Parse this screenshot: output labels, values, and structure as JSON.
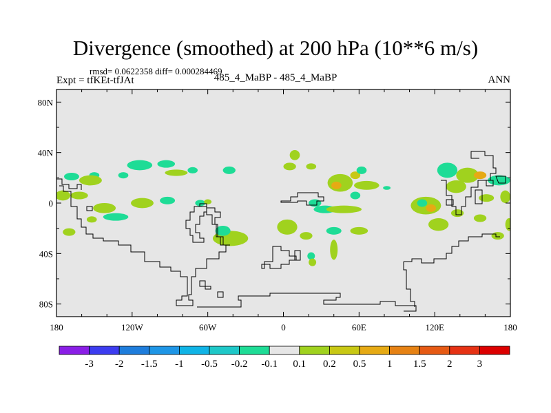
{
  "title": "Divergence (smoothed) at 200 hPa (10**6 m/s)",
  "stats_line": "rmsd= 0.0622358 diff= 0.000284469",
  "expt_label": "Expt = tfKEt-tfJAt",
  "case_label": "485_4_MaBP - 485_4_MaBP",
  "season_label": "ANN",
  "chart_data": {
    "type": "heatmap",
    "title": "Divergence (smoothed) at 200 hPa (10**6 m/s)",
    "subtitle": "485_4_MaBP - 485_4_MaBP",
    "xlim": [
      -180,
      180
    ],
    "ylim": [
      -90,
      90
    ],
    "x_ticks": [
      {
        "value": -180,
        "label": "180"
      },
      {
        "value": -120,
        "label": "120W"
      },
      {
        "value": -60,
        "label": "60W"
      },
      {
        "value": 0,
        "label": "0"
      },
      {
        "value": 60,
        "label": "60E"
      },
      {
        "value": 120,
        "label": "120E"
      },
      {
        "value": 180,
        "label": "180"
      }
    ],
    "y_ticks": [
      {
        "value": 80,
        "label": "80N"
      },
      {
        "value": 40,
        "label": "40N"
      },
      {
        "value": 0,
        "label": "0"
      },
      {
        "value": -40,
        "label": "40S"
      },
      {
        "value": -80,
        "label": "80S"
      }
    ],
    "background_color": "#e6e6e6",
    "contour_levels": [
      "-3",
      "-2",
      "-1.5",
      "-1",
      "-0.5",
      "-0.2",
      "-0.1",
      "0.1",
      "0.2",
      "0.5",
      "1",
      "1.5",
      "2",
      "3"
    ],
    "colorbar_colors": [
      "#8a1ee6",
      "#3c3cf0",
      "#1e7ddc",
      "#1e96e6",
      "#10b4e6",
      "#1ec8c8",
      "#1edc96",
      "#e6e6e6",
      "#a0d21e",
      "#c8c814",
      "#e6aa14",
      "#e68214",
      "#e65a14",
      "#e63214",
      "#dc0000"
    ],
    "blobs": [
      {
        "lon": -168,
        "lat": 21,
        "rx": 6,
        "ry": 3,
        "level": "-0.2"
      },
      {
        "lon": -150,
        "lat": 22,
        "rx": 4,
        "ry": 2.5,
        "level": "-0.2"
      },
      {
        "lon": -127,
        "lat": 22,
        "rx": 4,
        "ry": 2.5,
        "level": "-0.2"
      },
      {
        "lon": -114,
        "lat": 30,
        "rx": 10,
        "ry": 4,
        "level": "-0.2"
      },
      {
        "lon": -93,
        "lat": 31,
        "rx": 7,
        "ry": 3,
        "level": "-0.2"
      },
      {
        "lon": -72,
        "lat": 26,
        "rx": 4,
        "ry": 2.5,
        "level": "-0.2"
      },
      {
        "lon": -43,
        "lat": 26,
        "rx": 5,
        "ry": 3,
        "level": "-0.2"
      },
      {
        "lon": -85,
        "lat": 24,
        "rx": 9,
        "ry": 2.5,
        "level": "0.1"
      },
      {
        "lon": -153,
        "lat": 18,
        "rx": 9,
        "ry": 4,
        "level": "0.1"
      },
      {
        "lon": -162,
        "lat": 6,
        "rx": 7,
        "ry": 3,
        "level": "0.1"
      },
      {
        "lon": -175,
        "lat": 6,
        "rx": 6,
        "ry": 4,
        "level": "0.1"
      },
      {
        "lon": -142,
        "lat": -4,
        "rx": 9,
        "ry": 4,
        "level": "0.1"
      },
      {
        "lon": -112,
        "lat": 0,
        "rx": 9,
        "ry": 4,
        "level": "0.1"
      },
      {
        "lon": -92,
        "lat": 2,
        "rx": 6,
        "ry": 3,
        "level": "-0.2"
      },
      {
        "lon": -66,
        "lat": 0,
        "rx": 4,
        "ry": 2.5,
        "level": "-0.2"
      },
      {
        "lon": -60,
        "lat": 1,
        "rx": 3,
        "ry": 2,
        "level": "0.1"
      },
      {
        "lon": -133,
        "lat": -11,
        "rx": 10,
        "ry": 3,
        "level": "-0.2"
      },
      {
        "lon": -152,
        "lat": -13,
        "rx": 4,
        "ry": 2.5,
        "level": "0.1"
      },
      {
        "lon": -170,
        "lat": -23,
        "rx": 5,
        "ry": 3,
        "level": "0.1"
      },
      {
        "lon": -42,
        "lat": -28,
        "rx": 14,
        "ry": 6,
        "level": "0.1"
      },
      {
        "lon": -48,
        "lat": -22,
        "rx": 6,
        "ry": 4,
        "level": "-0.2"
      },
      {
        "lon": 9,
        "lat": 38,
        "rx": 4,
        "ry": 4,
        "level": "0.1"
      },
      {
        "lon": 5,
        "lat": 29,
        "rx": 5,
        "ry": 3,
        "level": "0.1"
      },
      {
        "lon": 22,
        "lat": 29,
        "rx": 4,
        "ry": 2.5,
        "level": "0.1"
      },
      {
        "lon": 45,
        "lat": 16,
        "rx": 10,
        "ry": 7,
        "level": "0.1"
      },
      {
        "lon": 42,
        "lat": 14,
        "rx": 4,
        "ry": 3,
        "level": "0.5"
      },
      {
        "lon": 57,
        "lat": 22,
        "rx": 4,
        "ry": 3,
        "level": "0.2"
      },
      {
        "lon": 66,
        "lat": 14,
        "rx": 10,
        "ry": 3.5,
        "level": "0.1"
      },
      {
        "lon": 57,
        "lat": 6,
        "rx": 4,
        "ry": 3,
        "level": "-0.2"
      },
      {
        "lon": 62,
        "lat": 26,
        "rx": 4,
        "ry": 3,
        "level": "-0.2"
      },
      {
        "lon": 25,
        "lat": 0,
        "rx": 5,
        "ry": 3,
        "level": "-0.2"
      },
      {
        "lon": 33,
        "lat": -5,
        "rx": 9,
        "ry": 3,
        "level": "-0.2"
      },
      {
        "lon": 48,
        "lat": -5,
        "rx": 14,
        "ry": 3,
        "level": "0.1"
      },
      {
        "lon": 3,
        "lat": -19,
        "rx": 8,
        "ry": 6,
        "level": "0.1"
      },
      {
        "lon": 18,
        "lat": -26,
        "rx": 5,
        "ry": 3,
        "level": "0.1"
      },
      {
        "lon": 40,
        "lat": -22,
        "rx": 6,
        "ry": 3,
        "level": "-0.2"
      },
      {
        "lon": 40,
        "lat": -37,
        "rx": 3,
        "ry": 8,
        "level": "0.1"
      },
      {
        "lon": 60,
        "lat": -22,
        "rx": 7,
        "ry": 3,
        "level": "0.1"
      },
      {
        "lon": 22,
        "lat": -42,
        "rx": 3,
        "ry": 3,
        "level": "-0.2"
      },
      {
        "lon": 23,
        "lat": -47,
        "rx": 3,
        "ry": 3,
        "level": "0.1"
      },
      {
        "lon": 130,
        "lat": 26,
        "rx": 8,
        "ry": 6,
        "level": "-0.2"
      },
      {
        "lon": 146,
        "lat": 22,
        "rx": 9,
        "ry": 6,
        "level": "0.1"
      },
      {
        "lon": 156,
        "lat": 22,
        "rx": 5,
        "ry": 3,
        "level": "0.5"
      },
      {
        "lon": 171,
        "lat": 18,
        "rx": 9,
        "ry": 4,
        "level": "-0.2"
      },
      {
        "lon": 137,
        "lat": 13,
        "rx": 8,
        "ry": 5,
        "level": "0.1"
      },
      {
        "lon": 161,
        "lat": 4,
        "rx": 6,
        "ry": 3,
        "level": "0.1"
      },
      {
        "lon": 176,
        "lat": 5,
        "rx": 4,
        "ry": 5,
        "level": "0.1"
      },
      {
        "lon": 113,
        "lat": -2,
        "rx": 12,
        "ry": 7,
        "level": "0.1"
      },
      {
        "lon": 117,
        "lat": -4,
        "rx": 4,
        "ry": 3,
        "level": "0.5"
      },
      {
        "lon": 110,
        "lat": 0,
        "rx": 4,
        "ry": 3,
        "level": "-0.2"
      },
      {
        "lon": 123,
        "lat": -17,
        "rx": 8,
        "ry": 5,
        "level": "0.1"
      },
      {
        "lon": 138,
        "lat": -8,
        "rx": 5,
        "ry": 3,
        "level": "0.1"
      },
      {
        "lon": 156,
        "lat": -12,
        "rx": 5,
        "ry": 3,
        "level": "0.1"
      },
      {
        "lon": 170,
        "lat": -26,
        "rx": 5,
        "ry": 3,
        "level": "0.1"
      },
      {
        "lon": 179,
        "lat": -17,
        "rx": 3,
        "ry": 5,
        "level": "0.1"
      },
      {
        "lon": 82,
        "lat": 12,
        "rx": 3,
        "ry": 1.5,
        "level": "-0.2"
      }
    ]
  }
}
